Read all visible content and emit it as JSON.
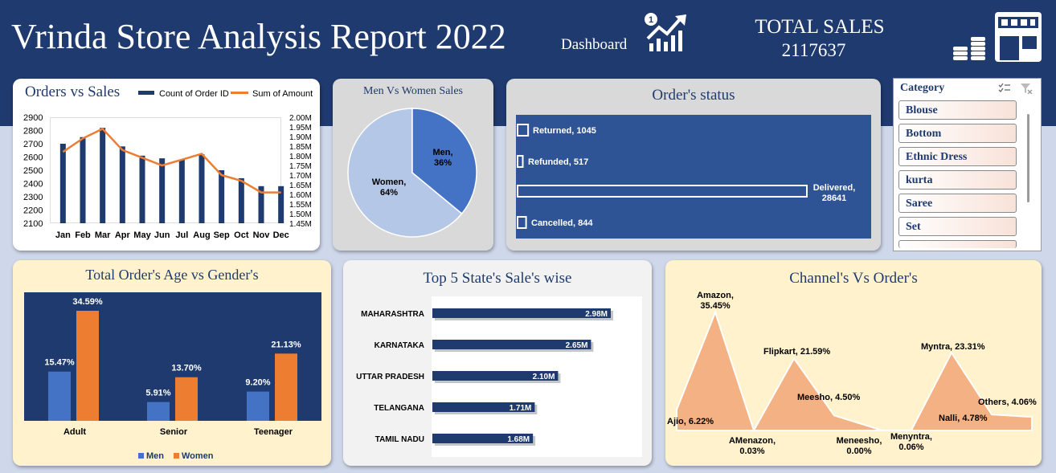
{
  "header": {
    "title": "Vrinda Store Analysis Report 2022",
    "subtitle": "Dashboard",
    "total_label": "TOTAL SALES",
    "total_value": "2117637",
    "icons": [
      "growth-chart-icon",
      "coins-icon",
      "store-icon"
    ]
  },
  "orders_vs_sales": {
    "title": "Orders vs Sales",
    "legend": {
      "orders": "Count of Order ID",
      "amount": "Sum of Amount"
    },
    "left_ticks": [
      "2900",
      "2800",
      "2700",
      "2600",
      "2500",
      "2400",
      "2300",
      "2200",
      "2100"
    ],
    "right_ticks": [
      "2.00M",
      "1.95M",
      "1.90M",
      "1.85M",
      "1.80M",
      "1.75M",
      "1.70M",
      "1.65M",
      "1.60M",
      "1.55M",
      "1.50M",
      "1.45M"
    ],
    "colors": {
      "bars": "#1f3a6e",
      "line": "#ed7d31"
    }
  },
  "men_women": {
    "title": "Men Vs Women Sales",
    "men_label": "Men,",
    "men_pct": "36%",
    "women_label": "Women,",
    "women_pct": "64%",
    "colors": {
      "men": "#4472c4",
      "women": "#b4c7e7"
    }
  },
  "order_status": {
    "title": "Order's status",
    "labels": [
      "Returned, 1045",
      "Refunded, 517",
      "Delivered,",
      "28641",
      "Cancelled, 844"
    ]
  },
  "category_slicer": {
    "title": "Category",
    "items": [
      "Blouse",
      "Bottom",
      "Ethnic Dress",
      "kurta",
      "Saree",
      "Set"
    ]
  },
  "age_gender": {
    "title": "Total Order's Age vs Gender's",
    "legend": {
      "men": "Men",
      "women": "Women"
    },
    "colors": {
      "men": "#4472c4",
      "women": "#ed7d31",
      "plot_bg": "#1f3a6e"
    }
  },
  "top_states": {
    "title": "Top 5 State's Sale's wise",
    "color": "#1f3a6e"
  },
  "channels": {
    "title": "Channel's Vs Order's",
    "labels": {
      "amazon": [
        "Amazon,",
        "35.45%"
      ],
      "ajio": "Ajio, 6.22%",
      "amenazon": [
        "AMenazon,",
        "0.03%"
      ],
      "flipkart": "Flipkart, 21.59%",
      "meesho": "Meesho, 4.50%",
      "meneesho": [
        "Meneesho,",
        "0.00%"
      ],
      "menyntra": [
        "Menyntra,",
        "0.06%"
      ],
      "myntra": "Myntra, 23.31%",
      "nalli": "Nalli, 4.78%",
      "others": "Others, 4.06%"
    },
    "color": "#f4b183"
  },
  "chart_data": [
    {
      "type": "bar",
      "title": "Orders vs Sales",
      "categories": [
        "Jan",
        "Feb",
        "Mar",
        "Apr",
        "May",
        "Jun",
        "Jul",
        "Aug",
        "Sep",
        "Oct",
        "Nov",
        "Dec"
      ],
      "series": [
        {
          "name": "Count of Order ID",
          "values": [
            2700,
            2750,
            2820,
            2680,
            2610,
            2590,
            2580,
            2620,
            2500,
            2440,
            2380,
            2380
          ],
          "axis": "left"
        },
        {
          "name": "Sum of Amount",
          "type": "line",
          "values": [
            1.82,
            1.89,
            1.94,
            1.83,
            1.79,
            1.75,
            1.78,
            1.81,
            1.7,
            1.67,
            1.61,
            1.61
          ],
          "axis": "right"
        }
      ],
      "ylim": [
        2100,
        2900
      ],
      "y2lim": [
        1.45,
        2.0
      ]
    },
    {
      "type": "pie",
      "title": "Men Vs Women Sales",
      "categories": [
        "Men",
        "Women"
      ],
      "values": [
        36,
        64
      ]
    },
    {
      "type": "bar",
      "title": "Order's status",
      "categories": [
        "Returned",
        "Refunded",
        "Delivered",
        "Cancelled"
      ],
      "values": [
        1045,
        517,
        28641,
        844
      ],
      "orientation": "horizontal"
    },
    {
      "type": "bar",
      "title": "Total Order's Age vs Gender's",
      "categories": [
        "Adult",
        "Senior",
        "Teenager"
      ],
      "series": [
        {
          "name": "Men",
          "values": [
            15.47,
            5.91,
            9.2
          ],
          "labels": [
            "15.47%",
            "5.91%",
            "9.20%"
          ]
        },
        {
          "name": "Women",
          "values": [
            34.59,
            13.7,
            21.13
          ],
          "labels": [
            "34.59%",
            "13.70%",
            "21.13%"
          ]
        }
      ],
      "legend": "bottom"
    },
    {
      "type": "bar",
      "title": "Top 5 State's Sale's wise",
      "orientation": "horizontal",
      "categories": [
        "MAHARASHTRA",
        "KARNATAKA",
        "UTTAR PRADESH",
        "TELANGANA",
        "TAMIL NADU"
      ],
      "values": [
        2.98,
        2.65,
        2.1,
        1.71,
        1.68
      ],
      "labels": [
        "2.98M",
        "2.65M",
        "2.10M",
        "1.71M",
        "1.68M"
      ]
    },
    {
      "type": "area",
      "title": "Channel's Vs Order's",
      "categories": [
        "Ajio",
        "Amazon",
        "AMenazon",
        "Flipkart",
        "Meesho",
        "Meneesho",
        "Menyntra",
        "Myntra",
        "Nalli",
        "Others"
      ],
      "values": [
        6.22,
        35.45,
        0.03,
        21.59,
        4.5,
        0.0,
        0.06,
        23.31,
        4.78,
        4.06
      ]
    }
  ]
}
